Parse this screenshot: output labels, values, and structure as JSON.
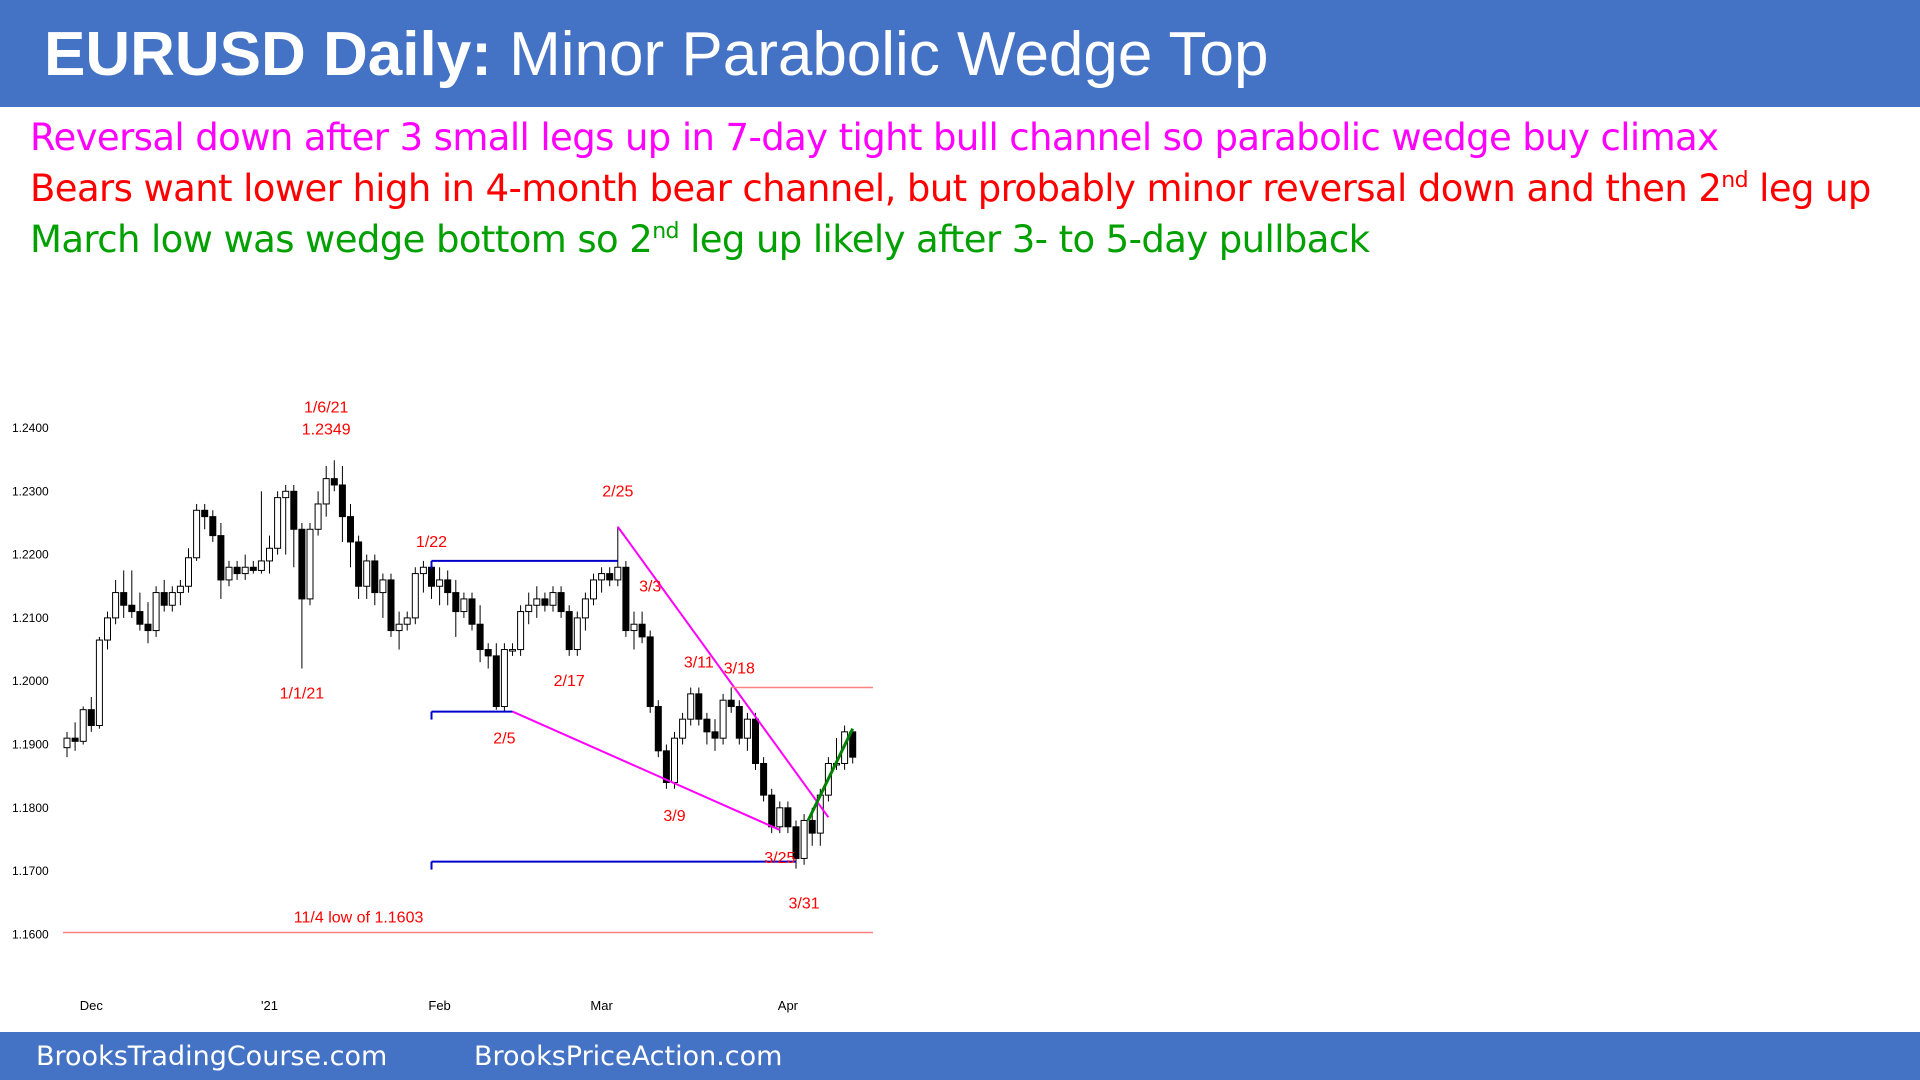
{
  "header": {
    "title_bold": "EURUSD Daily:",
    "title_rest": " Minor Parabolic Wedge Top"
  },
  "notes": [
    {
      "color": "#ff00ff",
      "pre": "Reversal down after 3 small legs up in 7-day tight bull channel so parabolic wedge buy climax",
      "sup": "",
      "post": ""
    },
    {
      "color": "#ff0000",
      "pre": "Bears want lower high in 4-month bear channel, but probably minor reversal down and then 2",
      "sup": "nd",
      "post": " leg up"
    },
    {
      "color": "#00a000",
      "pre": "March low was wedge bottom so 2",
      "sup": "nd",
      "post": " leg up likely after 3- to 5-day pullback"
    }
  ],
  "footer": {
    "left": "BrooksTradingCourse.com",
    "right": "BrooksPriceAction.com"
  },
  "chart_data": {
    "type": "candlestick",
    "instrument": "EURUSD",
    "timeframe": "Daily",
    "ylim": [
      1.156,
      1.242
    ],
    "y_ticks": [
      "1.2400",
      "1.2300",
      "1.2200",
      "1.2100",
      "1.2000",
      "1.1900",
      "1.1800",
      "1.1700",
      "1.1600"
    ],
    "x_ticks": [
      {
        "label": "Dec",
        "index": 3
      },
      {
        "label": "'21",
        "index": 25
      },
      {
        "label": "Feb",
        "index": 46
      },
      {
        "label": "Mar",
        "index": 66
      },
      {
        "label": "Apr",
        "index": 89
      }
    ],
    "colors": {
      "up_fill": "#ffffff",
      "down_fill": "#000000",
      "red_text": "#ff0000",
      "magenta": "#ff00ff",
      "blue": "#0000cc",
      "green": "#008000",
      "salmon": "#ff8080"
    },
    "candles": [
      [
        1.1895,
        1.192,
        1.188,
        1.191
      ],
      [
        1.191,
        1.1935,
        1.189,
        1.1905
      ],
      [
        1.1905,
        1.196,
        1.19,
        1.1955
      ],
      [
        1.1955,
        1.1975,
        1.192,
        1.193
      ],
      [
        1.193,
        1.207,
        1.1925,
        1.2065
      ],
      [
        1.2065,
        1.211,
        1.205,
        1.21
      ],
      [
        1.21,
        1.216,
        1.209,
        1.214
      ],
      [
        1.214,
        1.2175,
        1.21,
        1.212
      ],
      [
        1.212,
        1.2175,
        1.21,
        1.211
      ],
      [
        1.211,
        1.214,
        1.208,
        1.209
      ],
      [
        1.209,
        1.2125,
        1.206,
        1.208
      ],
      [
        1.208,
        1.215,
        1.207,
        1.214
      ],
      [
        1.214,
        1.216,
        1.211,
        1.212
      ],
      [
        1.212,
        1.215,
        1.211,
        1.214
      ],
      [
        1.214,
        1.216,
        1.212,
        1.215
      ],
      [
        1.215,
        1.221,
        1.214,
        1.2195
      ],
      [
        1.2195,
        1.228,
        1.219,
        1.227
      ],
      [
        1.227,
        1.228,
        1.224,
        1.226
      ],
      [
        1.226,
        1.227,
        1.222,
        1.223
      ],
      [
        1.223,
        1.225,
        1.213,
        1.216
      ],
      [
        1.216,
        1.219,
        1.215,
        1.218
      ],
      [
        1.218,
        1.219,
        1.216,
        1.217
      ],
      [
        1.217,
        1.22,
        1.216,
        1.218
      ],
      [
        1.218,
        1.219,
        1.217,
        1.2175
      ],
      [
        1.2175,
        1.23,
        1.217,
        1.219
      ],
      [
        1.219,
        1.223,
        1.217,
        1.221
      ],
      [
        1.221,
        1.23,
        1.22,
        1.229
      ],
      [
        1.229,
        1.231,
        1.22,
        1.23
      ],
      [
        1.23,
        1.231,
        1.218,
        1.224
      ],
      [
        1.224,
        1.225,
        1.202,
        1.213
      ],
      [
        1.213,
        1.225,
        1.212,
        1.224
      ],
      [
        1.224,
        1.23,
        1.223,
        1.228
      ],
      [
        1.228,
        1.234,
        1.226,
        1.232
      ],
      [
        1.232,
        1.2349,
        1.23,
        1.231
      ],
      [
        1.231,
        1.234,
        1.222,
        1.226
      ],
      [
        1.226,
        1.228,
        1.218,
        1.222
      ],
      [
        1.222,
        1.223,
        1.213,
        1.215
      ],
      [
        1.215,
        1.22,
        1.213,
        1.219
      ],
      [
        1.219,
        1.22,
        1.212,
        1.214
      ],
      [
        1.214,
        1.217,
        1.21,
        1.216
      ],
      [
        1.216,
        1.217,
        1.207,
        1.208
      ],
      [
        1.208,
        1.211,
        1.205,
        1.209
      ],
      [
        1.209,
        1.211,
        1.208,
        1.21
      ],
      [
        1.21,
        1.218,
        1.209,
        1.217
      ],
      [
        1.217,
        1.219,
        1.214,
        1.218
      ],
      [
        1.218,
        1.219,
        1.213,
        1.215
      ],
      [
        1.215,
        1.218,
        1.212,
        1.216
      ],
      [
        1.216,
        1.2175,
        1.212,
        1.214
      ],
      [
        1.214,
        1.216,
        1.207,
        1.211
      ],
      [
        1.211,
        1.214,
        1.21,
        1.213
      ],
      [
        1.213,
        1.214,
        1.208,
        1.209
      ],
      [
        1.209,
        1.212,
        1.203,
        1.205
      ],
      [
        1.205,
        1.206,
        1.202,
        1.204
      ],
      [
        1.204,
        1.206,
        1.1955,
        1.196
      ],
      [
        1.196,
        1.206,
        1.1952,
        1.205
      ],
      [
        1.205,
        1.206,
        1.204,
        1.205
      ],
      [
        1.205,
        1.212,
        1.204,
        1.211
      ],
      [
        1.211,
        1.214,
        1.209,
        1.212
      ],
      [
        1.212,
        1.215,
        1.21,
        1.213
      ],
      [
        1.213,
        1.214,
        1.211,
        1.212
      ],
      [
        1.212,
        1.215,
        1.211,
        1.214
      ],
      [
        1.214,
        1.215,
        1.21,
        1.211
      ],
      [
        1.211,
        1.212,
        1.204,
        1.205
      ],
      [
        1.205,
        1.211,
        1.204,
        1.21
      ],
      [
        1.21,
        1.214,
        1.208,
        1.213
      ],
      [
        1.213,
        1.217,
        1.212,
        1.216
      ],
      [
        1.216,
        1.218,
        1.214,
        1.217
      ],
      [
        1.217,
        1.218,
        1.215,
        1.216
      ],
      [
        1.216,
        1.2244,
        1.215,
        1.218
      ],
      [
        1.218,
        1.219,
        1.207,
        1.208
      ],
      [
        1.208,
        1.211,
        1.205,
        1.209
      ],
      [
        1.209,
        1.211,
        1.206,
        1.207
      ],
      [
        1.207,
        1.208,
        1.195,
        1.196
      ],
      [
        1.196,
        1.197,
        1.188,
        1.189
      ],
      [
        1.189,
        1.19,
        1.183,
        1.184
      ],
      [
        1.184,
        1.192,
        1.183,
        1.191
      ],
      [
        1.191,
        1.195,
        1.19,
        1.194
      ],
      [
        1.194,
        1.199,
        1.193,
        1.198
      ],
      [
        1.198,
        1.199,
        1.193,
        1.194
      ],
      [
        1.194,
        1.195,
        1.19,
        1.192
      ],
      [
        1.192,
        1.194,
        1.189,
        1.191
      ],
      [
        1.191,
        1.198,
        1.19,
        1.197
      ],
      [
        1.197,
        1.199,
        1.195,
        1.196
      ],
      [
        1.196,
        1.197,
        1.19,
        1.191
      ],
      [
        1.191,
        1.195,
        1.189,
        1.194
      ],
      [
        1.194,
        1.195,
        1.186,
        1.187
      ],
      [
        1.187,
        1.188,
        1.181,
        1.182
      ],
      [
        1.182,
        1.183,
        1.176,
        1.177
      ],
      [
        1.177,
        1.181,
        1.176,
        1.18
      ],
      [
        1.18,
        1.181,
        1.176,
        1.177
      ],
      [
        1.177,
        1.178,
        1.1704,
        1.172
      ],
      [
        1.172,
        1.179,
        1.171,
        1.178
      ],
      [
        1.178,
        1.18,
        1.174,
        1.176
      ],
      [
        1.176,
        1.183,
        1.174,
        1.182
      ],
      [
        1.182,
        1.188,
        1.181,
        1.187
      ],
      [
        1.187,
        1.191,
        1.186,
        1.187
      ],
      [
        1.187,
        1.193,
        1.186,
        1.192
      ],
      [
        1.192,
        1.192,
        1.187,
        1.188
      ]
    ],
    "annotations": [
      {
        "text": "1/6/21",
        "index": 32,
        "price": 1.2349,
        "dy": -48,
        "color": "#ff0000"
      },
      {
        "text": "1.2349",
        "index": 32,
        "price": 1.2349,
        "dy": -26,
        "color": "#ff0000"
      },
      {
        "text": "1/1/21",
        "index": 29,
        "price": 1.202,
        "dy": 30,
        "color": "#ff0000"
      },
      {
        "text": "1/22",
        "index": 45,
        "price": 1.219,
        "dy": -14,
        "color": "#ff0000"
      },
      {
        "text": "2/5",
        "index": 54,
        "price": 1.1952,
        "dy": 32,
        "color": "#ff0000"
      },
      {
        "text": "2/17",
        "index": 62,
        "price": 1.204,
        "dy": 30,
        "color": "#ff0000"
      },
      {
        "text": "2/25",
        "index": 68,
        "price": 1.2244,
        "dy": -30,
        "color": "#ff0000"
      },
      {
        "text": "3/3",
        "index": 72,
        "price": 1.211,
        "dy": -20,
        "color": "#ff0000"
      },
      {
        "text": "3/9",
        "index": 75,
        "price": 1.183,
        "dy": 32,
        "color": "#ff0000"
      },
      {
        "text": "3/11",
        "index": 78,
        "price": 1.199,
        "dy": -20,
        "color": "#ff0000"
      },
      {
        "text": "3/18",
        "index": 83,
        "price": 1.199,
        "dy": -14,
        "color": "#ff0000"
      },
      {
        "text": "3/25",
        "index": 88,
        "price": 1.176,
        "dy": 30,
        "color": "#ff0000"
      },
      {
        "text": "3/31",
        "index": 91,
        "price": 1.1704,
        "dy": 40,
        "color": "#ff0000"
      },
      {
        "text": "11/4 low of 1.1603",
        "index": 36,
        "price": 1.1603,
        "dy": -10,
        "color": "#ff0000"
      }
    ],
    "lines": [
      {
        "name": "resistance-1.2190",
        "color": "#0000cc",
        "from": [
          45,
          1.219
        ],
        "to": [
          68,
          1.219
        ],
        "tick_left": true
      },
      {
        "name": "support-1.1952",
        "color": "#0000cc",
        "from": [
          45,
          1.1952
        ],
        "to": [
          55,
          1.1952
        ],
        "tick_left": true
      },
      {
        "name": "support-1.1715",
        "color": "#0000cc",
        "from": [
          45,
          1.1715
        ],
        "to": [
          90,
          1.1715
        ],
        "tick_left": true
      },
      {
        "name": "wedge-lower-trendline",
        "color": "#ff00ff",
        "from": [
          55,
          1.1952
        ],
        "to": [
          88,
          1.1765
        ]
      },
      {
        "name": "bear-trendline",
        "color": "#ff00ff",
        "from": [
          68,
          1.2244
        ],
        "to": [
          94,
          1.1785
        ]
      },
      {
        "name": "level-1.1990",
        "color": "#ff8080",
        "from": [
          82,
          1.199
        ],
        "to": [
          99.5,
          1.199
        ]
      },
      {
        "name": "level-1.1603",
        "color": "#ff8080",
        "from": [
          -0.5,
          1.1603
        ],
        "to": [
          99.5,
          1.1603
        ]
      },
      {
        "name": "bull-channel",
        "color": "#008000",
        "from": [
          91.5,
          1.178
        ],
        "to": [
          97,
          1.1925
        ]
      }
    ]
  }
}
